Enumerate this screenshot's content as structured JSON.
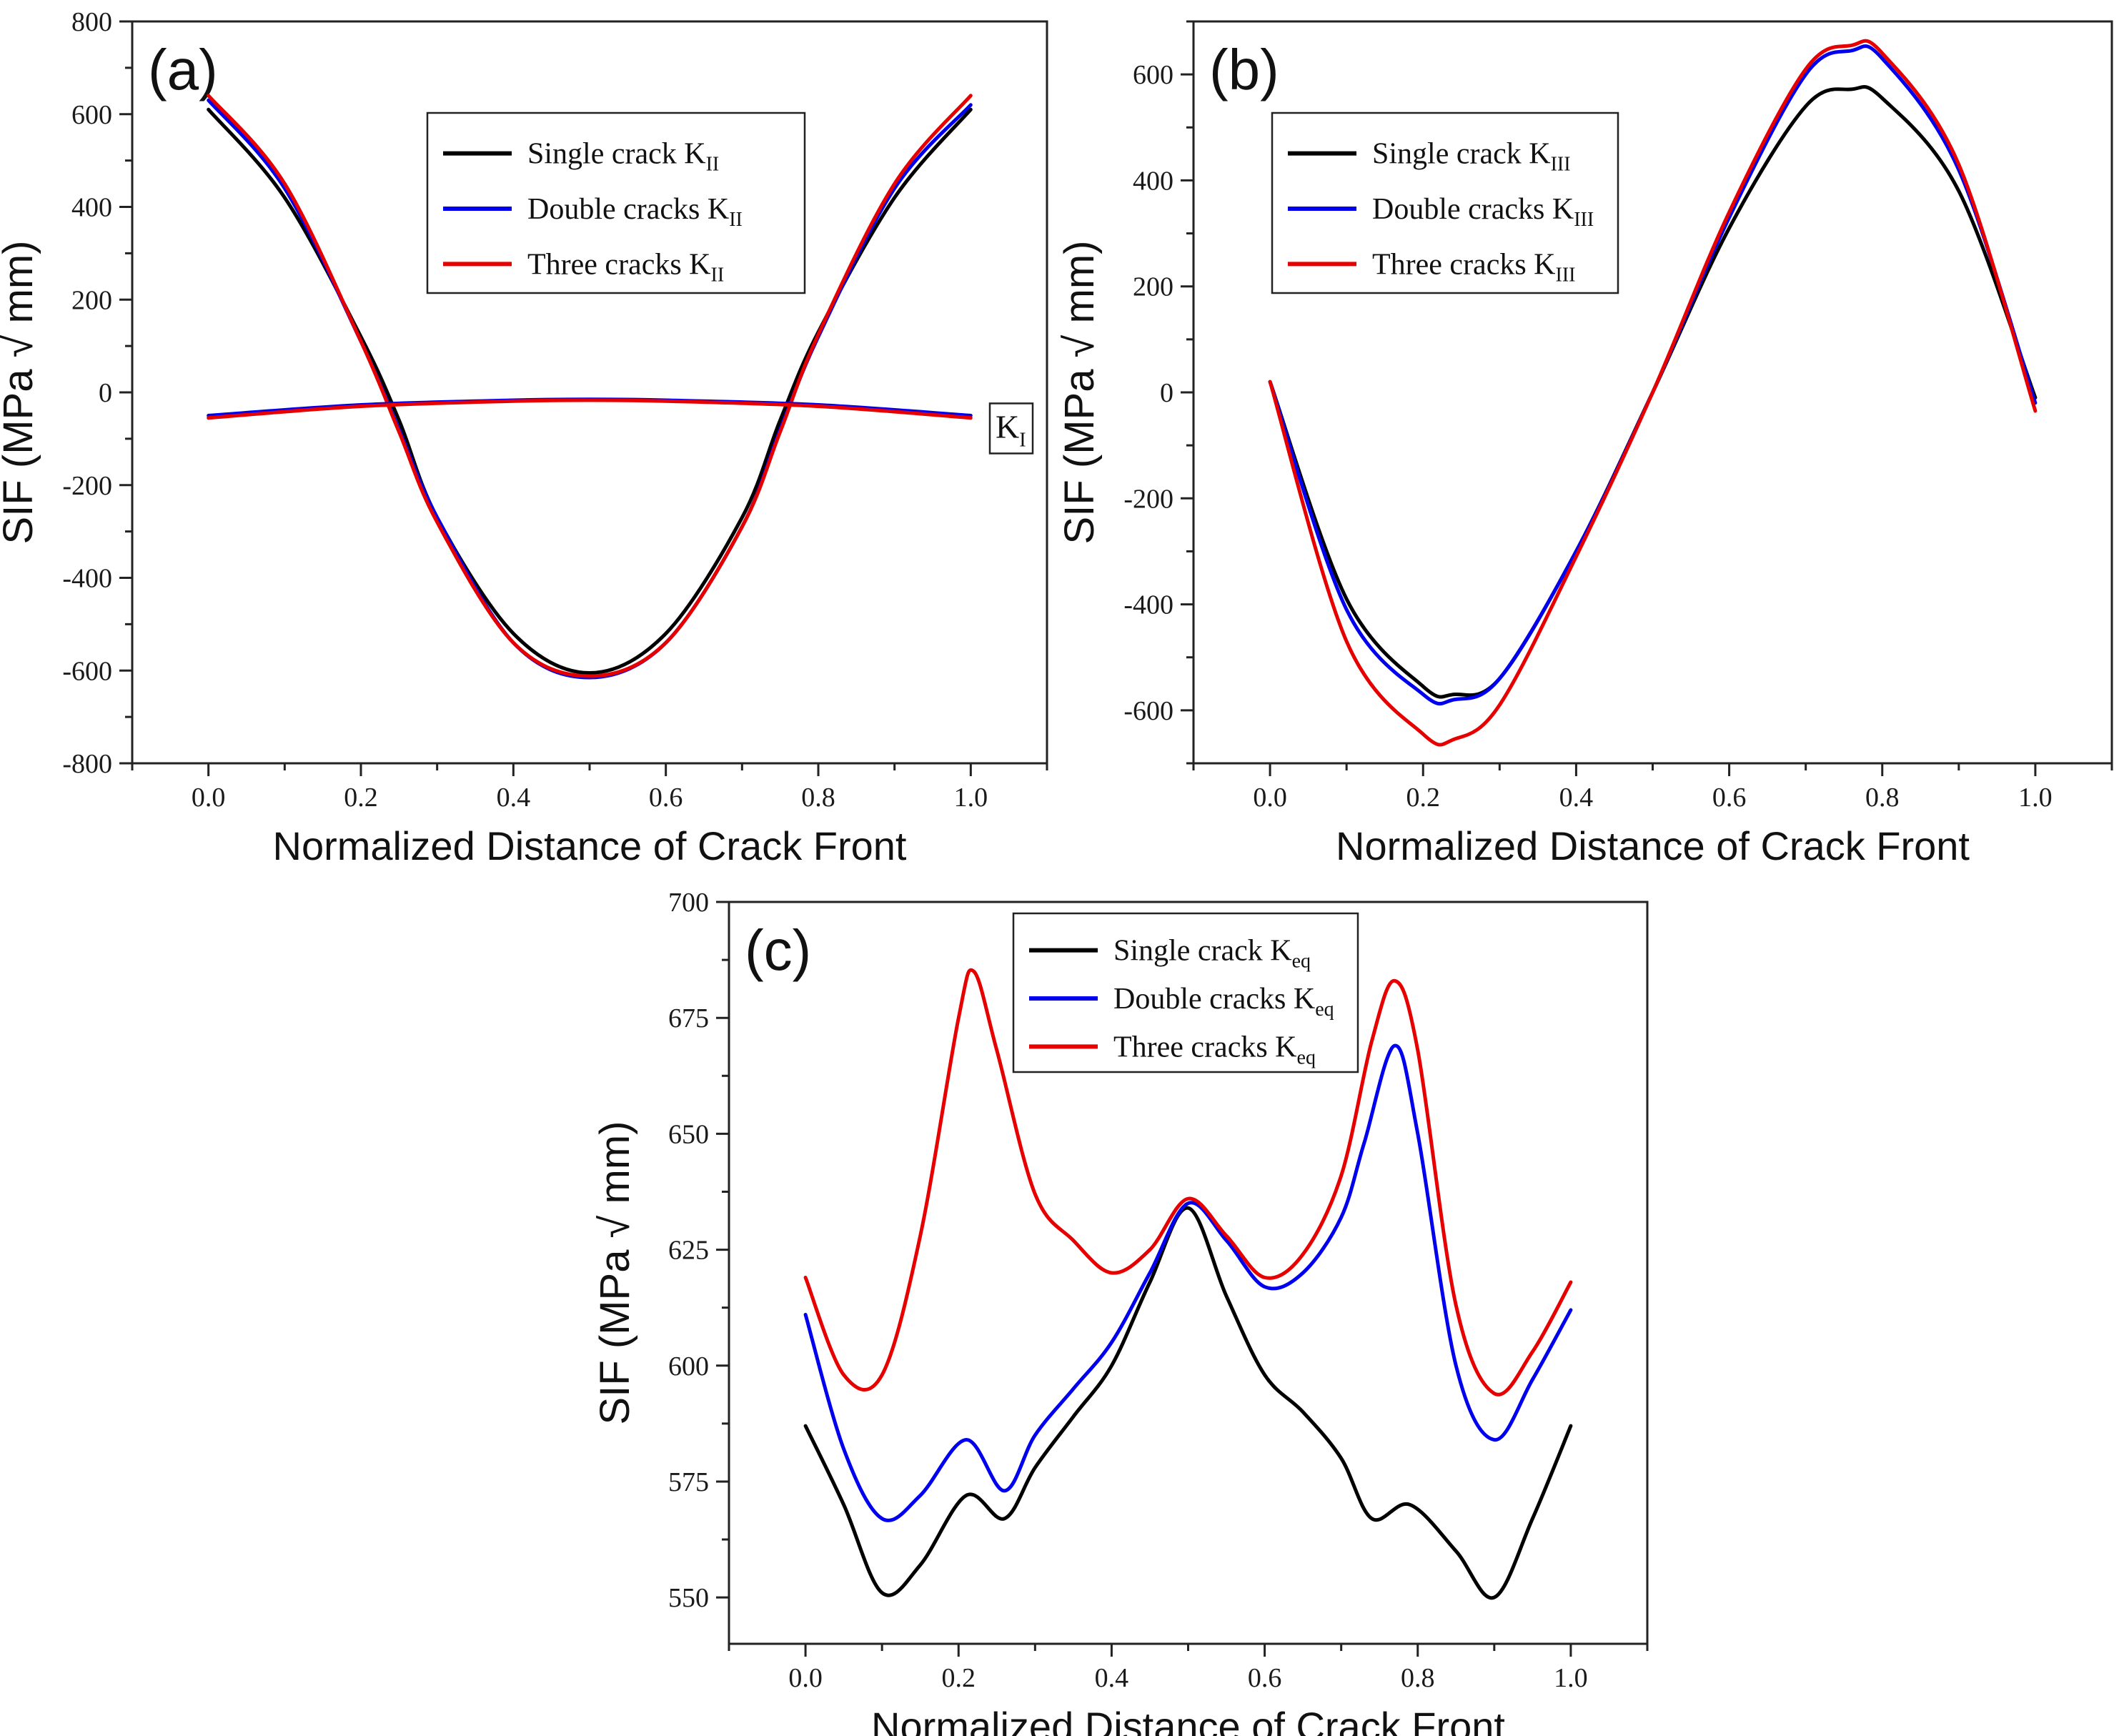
{
  "chart_data": [
    {
      "id": "a",
      "type": "line",
      "panel_label": "(a)",
      "xlabel": "Normalized Distance of Crack Front",
      "ylabel": "SIF (MPa √ mm)",
      "xlim": [
        -0.1,
        1.1
      ],
      "ylim": [
        -800,
        800
      ],
      "xticks": [
        0.0,
        0.2,
        0.4,
        0.6,
        0.8,
        1.0
      ],
      "xtick_labels": [
        "0.0",
        "0.2",
        "0.4",
        "0.6",
        "0.8",
        "1.0"
      ],
      "yticks": [
        -800,
        -600,
        -400,
        -200,
        0,
        200,
        400,
        600,
        800
      ],
      "ytick_labels": [
        "-800",
        "-600",
        "-400",
        "-200",
        "0",
        "200",
        "400",
        "600",
        "800"
      ],
      "legend_position": "top-center",
      "annotation": {
        "text": "K",
        "sub": "I"
      },
      "series": [
        {
          "name": "Single crack K",
          "sub": "II",
          "color": "#000000",
          "x": [
            0,
            0.1,
            0.2,
            0.25,
            0.3,
            0.4,
            0.5,
            0.6,
            0.7,
            0.75,
            0.8,
            0.9,
            1.0
          ],
          "y": [
            610,
            420,
            120,
            -60,
            -270,
            -520,
            -605,
            -520,
            -270,
            -60,
            130,
            420,
            610
          ]
        },
        {
          "name": "Double cracks K",
          "sub": "II",
          "color": "#0000ee",
          "x": [
            0,
            0.1,
            0.2,
            0.25,
            0.3,
            0.4,
            0.5,
            0.6,
            0.7,
            0.75,
            0.8,
            0.9,
            1.0
          ],
          "y": [
            630,
            440,
            110,
            -80,
            -270,
            -540,
            -615,
            -540,
            -290,
            -80,
            120,
            440,
            620
          ]
        },
        {
          "name": "Three cracks K",
          "sub": "II",
          "color": "#e60000",
          "x": [
            0,
            0.1,
            0.2,
            0.25,
            0.3,
            0.4,
            0.5,
            0.6,
            0.7,
            0.75,
            0.8,
            0.9,
            1.0
          ],
          "y": [
            640,
            450,
            110,
            -85,
            -280,
            -540,
            -612,
            -540,
            -290,
            -85,
            125,
            450,
            640
          ]
        },
        {
          "name": "",
          "sub": "",
          "legend": false,
          "color": "#0000ee",
          "x": [
            0,
            0.2,
            0.4,
            0.5,
            0.6,
            0.8,
            1.0
          ],
          "y": [
            -50,
            -27,
            -17,
            -15,
            -17,
            -27,
            -50
          ]
        },
        {
          "name": "",
          "sub": "",
          "legend": false,
          "color": "#e60000",
          "x": [
            0,
            0.2,
            0.4,
            0.5,
            0.6,
            0.8,
            1.0
          ],
          "y": [
            -55,
            -30,
            -19,
            -17,
            -19,
            -30,
            -55
          ]
        }
      ]
    },
    {
      "id": "b",
      "type": "line",
      "panel_label": "(b)",
      "xlabel": "Normalized Distance of Crack Front",
      "ylabel": "SIF (MPa √ mm)",
      "xlim": [
        -0.1,
        1.1
      ],
      "ylim": [
        -700,
        700
      ],
      "xticks": [
        0.0,
        0.2,
        0.4,
        0.6,
        0.8,
        1.0
      ],
      "xtick_labels": [
        "0.0",
        "0.2",
        "0.4",
        "0.6",
        "0.8",
        "1.0"
      ],
      "yticks": [
        -600,
        -400,
        -200,
        0,
        200,
        400,
        600
      ],
      "ytick_labels": [
        "-600",
        "-400",
        "-200",
        "0",
        "200",
        "400",
        "600"
      ],
      "legend_position": "top-left",
      "series": [
        {
          "name": "Single crack K",
          "sub": "III",
          "color": "#000000",
          "x": [
            0,
            0.1,
            0.2,
            0.24,
            0.3,
            0.4,
            0.5,
            0.6,
            0.7,
            0.76,
            0.8,
            0.9,
            1.0
          ],
          "y": [
            20,
            -390,
            -555,
            -570,
            -540,
            -300,
            0,
            310,
            540,
            572,
            555,
            380,
            -10
          ]
        },
        {
          "name": "Double cracks K",
          "sub": "III",
          "color": "#0000ee",
          "x": [
            0,
            0.1,
            0.2,
            0.24,
            0.3,
            0.4,
            0.5,
            0.6,
            0.7,
            0.76,
            0.8,
            0.9,
            1.0
          ],
          "y": [
            20,
            -410,
            -570,
            -580,
            -540,
            -300,
            0,
            330,
            600,
            645,
            630,
            420,
            -20
          ]
        },
        {
          "name": "Three cracks K",
          "sub": "III",
          "color": "#e60000",
          "x": [
            0,
            0.1,
            0.2,
            0.24,
            0.3,
            0.4,
            0.5,
            0.6,
            0.7,
            0.76,
            0.8,
            0.9,
            1.0
          ],
          "y": [
            20,
            -470,
            -645,
            -655,
            -590,
            -310,
            0,
            340,
            610,
            655,
            640,
            430,
            -35
          ]
        }
      ]
    },
    {
      "id": "c",
      "type": "line",
      "panel_label": "(c)",
      "xlabel": "Normalized Distance of Crack Front",
      "ylabel": "SIF (MPa √ mm)",
      "xlim": [
        -0.1,
        1.1
      ],
      "ylim": [
        540,
        700
      ],
      "xticks": [
        0.0,
        0.2,
        0.4,
        0.6,
        0.8,
        1.0
      ],
      "xtick_labels": [
        "0.0",
        "0.2",
        "0.4",
        "0.6",
        "0.8",
        "1.0"
      ],
      "yticks": [
        550,
        575,
        600,
        625,
        650,
        675,
        700
      ],
      "ytick_labels": [
        "550",
        "575",
        "600",
        "625",
        "650",
        "675",
        "700"
      ],
      "legend_position": "top-center",
      "series": [
        {
          "name": "Single crack K",
          "sub": "eq",
          "color": "#000000",
          "x": [
            0,
            0.05,
            0.1,
            0.15,
            0.21,
            0.26,
            0.3,
            0.35,
            0.4,
            0.45,
            0.5,
            0.55,
            0.6,
            0.65,
            0.7,
            0.74,
            0.79,
            0.85,
            0.9,
            0.95,
            1.0
          ],
          "y": [
            587,
            570,
            551,
            557,
            572,
            567,
            578,
            589,
            600,
            618,
            634,
            615,
            598,
            590,
            580,
            567,
            570,
            560,
            550,
            567,
            587
          ]
        },
        {
          "name": "Double cracks K",
          "sub": "eq",
          "color": "#0000ee",
          "x": [
            0,
            0.05,
            0.1,
            0.15,
            0.21,
            0.26,
            0.3,
            0.35,
            0.4,
            0.45,
            0.5,
            0.55,
            0.6,
            0.65,
            0.7,
            0.73,
            0.77,
            0.8,
            0.85,
            0.9,
            0.95,
            1.0
          ],
          "y": [
            611,
            582,
            567,
            572,
            584,
            573,
            585,
            595,
            605,
            620,
            635,
            627,
            617,
            620,
            632,
            648,
            669,
            650,
            600,
            584,
            597,
            612
          ]
        },
        {
          "name": "Three cracks K",
          "sub": "eq",
          "color": "#e60000",
          "x": [
            0,
            0.05,
            0.1,
            0.15,
            0.2,
            0.22,
            0.25,
            0.3,
            0.35,
            0.4,
            0.45,
            0.5,
            0.55,
            0.6,
            0.65,
            0.7,
            0.74,
            0.77,
            0.8,
            0.85,
            0.9,
            0.95,
            1.0
          ],
          "y": [
            619,
            598,
            598,
            628,
            675,
            685,
            668,
            637,
            627,
            620,
            625,
            636,
            628,
            619,
            624,
            641,
            670,
            683,
            668,
            613,
            594,
            603,
            618
          ]
        }
      ]
    }
  ]
}
